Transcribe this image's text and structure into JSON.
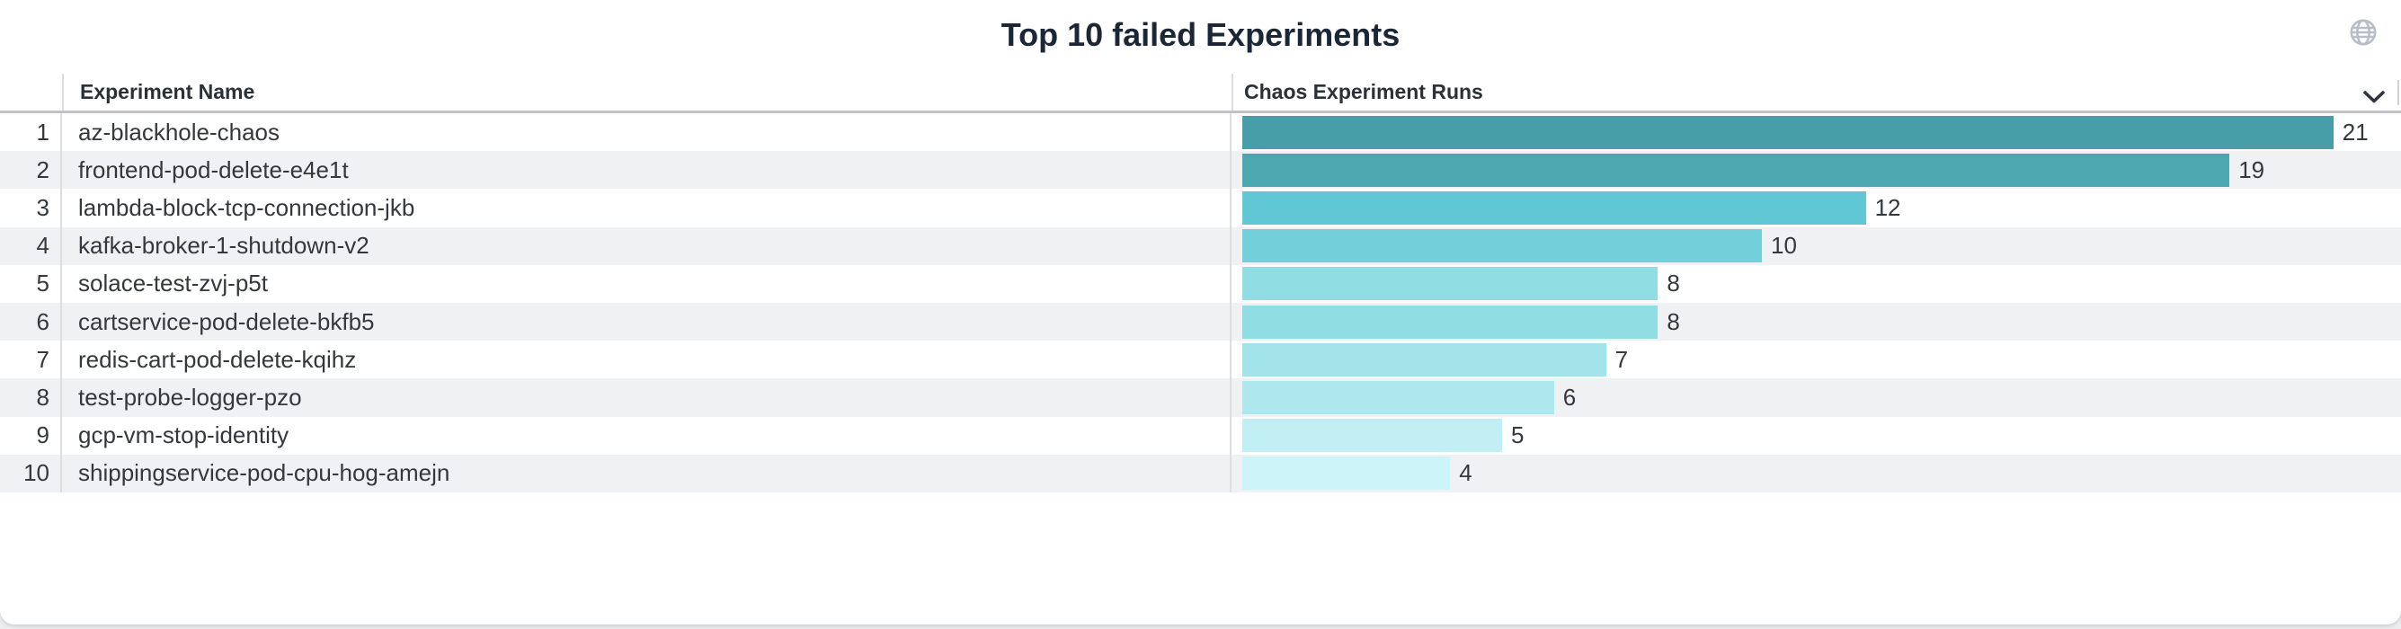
{
  "panel": {
    "title": "Top 10 failed Experiments",
    "columns": {
      "name_header": "Experiment Name",
      "runs_header": "Chaos Experiment Runs"
    },
    "icons": {
      "top_right": "globe",
      "runs_column_menu": "chevron-down"
    },
    "colors": {
      "title_text": "#1b2736",
      "header_text": "#2b3137",
      "body_text": "#34383c",
      "stripe": "#f0f1f2",
      "header_underline": "#bfc3c7",
      "divider": "#dcdee0",
      "icon_gray": "#b8bec7",
      "card_bg": "#ffffff"
    }
  },
  "chart_data": {
    "type": "bar",
    "orientation": "horizontal",
    "title": "Top 10 failed Experiments",
    "xlabel": "Chaos Experiment Runs",
    "ylabel": "Experiment Name",
    "ranks": [
      1,
      2,
      3,
      4,
      5,
      6,
      7,
      8,
      9,
      10
    ],
    "categories": [
      "az-blackhole-chaos",
      "frontend-pod-delete-e4e1t",
      "lambda-block-tcp-connection-jkb",
      "kafka-broker-1-shutdown-v2",
      "solace-test-zvj-p5t",
      "cartservice-pod-delete-bkfb5",
      "redis-cart-pod-delete-kqihz",
      "test-probe-logger-pzo",
      "gcp-vm-stop-identity",
      "shippingservice-pod-cpu-hog-amejn"
    ],
    "values": [
      21,
      19,
      12,
      10,
      8,
      8,
      7,
      6,
      5,
      4
    ],
    "bar_colors": [
      "#479ea8",
      "#4da7b1",
      "#5fc8d4",
      "#73d0da",
      "#90dde4",
      "#90dde4",
      "#a2e4ea",
      "#aee8ee",
      "#c2eff4",
      "#cdf4f8"
    ],
    "value_labels": true,
    "grid": false,
    "legend": false,
    "xlim": [
      0,
      22.2
    ],
    "row_striping": true
  }
}
